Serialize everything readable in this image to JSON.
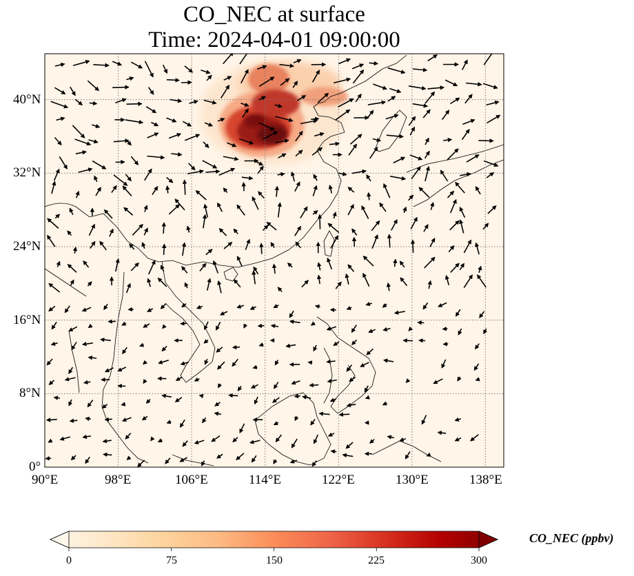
{
  "title": {
    "line1": "CO_NEC at surface",
    "line2": "Time: 2024-04-01 09:00:00"
  },
  "map": {
    "lon_range": [
      90,
      140
    ],
    "lat_range": [
      0,
      45
    ],
    "lon_ticks": [
      "90°E",
      "98°E",
      "106°E",
      "114°E",
      "122°E",
      "130°E",
      "138°E"
    ],
    "lon_tick_values": [
      90,
      98,
      106,
      114,
      122,
      130,
      138
    ],
    "lat_ticks": [
      "0°",
      "8°N",
      "16°N",
      "24°N",
      "32°N",
      "40°N"
    ],
    "lat_tick_values": [
      0,
      8,
      16,
      24,
      32,
      40
    ],
    "gridlines": true,
    "background_color": "#fff5e8",
    "plume_colors": [
      "#fdd4b0",
      "#f4a582",
      "#e05a3c",
      "#b2182b",
      "#67000d"
    ]
  },
  "colorbar": {
    "label": "CO_NEC (ppbv)",
    "ticks": [
      "0",
      "75",
      "150",
      "225",
      "300"
    ],
    "tick_values": [
      0,
      75,
      150,
      225,
      300
    ],
    "range": [
      0,
      300
    ],
    "colormap": "OrRd",
    "extend": "both",
    "colors": [
      "#fff7ec",
      "#fee8c8",
      "#fdd49e",
      "#fdbb84",
      "#fc8d59",
      "#ef6548",
      "#d7301f",
      "#b30000",
      "#7f0000"
    ]
  }
}
